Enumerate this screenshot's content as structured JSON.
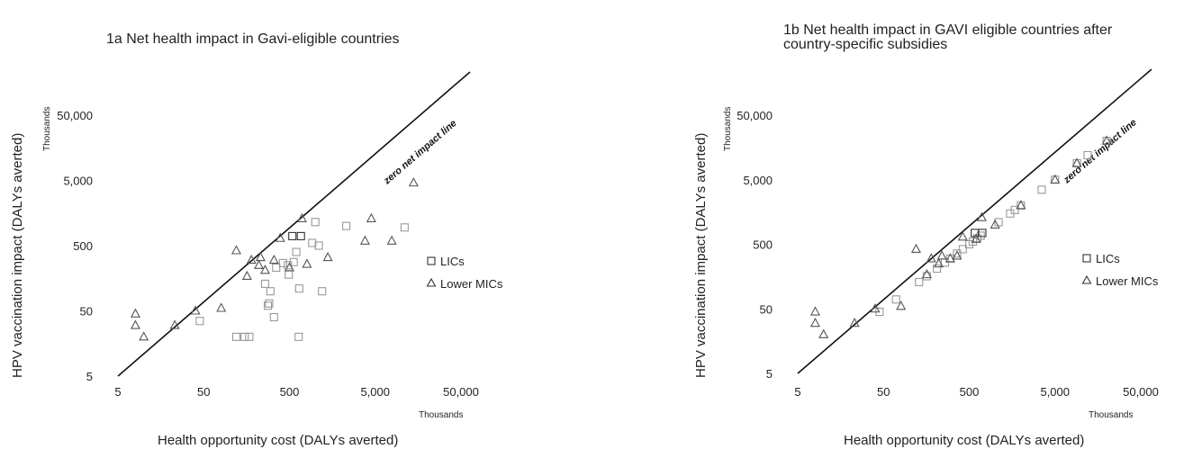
{
  "chart_data": [
    {
      "type": "scatter",
      "title_lines": [
        "1a Net health impact in Gavi-eligible countries"
      ],
      "xlabel": "Health opportunity cost (DALYs averted)",
      "ylabel": "HPV vaccination impact (DALYs averted)",
      "x_units": "Thousands",
      "y_units": "Thousands",
      "x_scale": "log",
      "y_scale": "log",
      "xlim": [
        5,
        100000
      ],
      "ylim": [
        5,
        100000
      ],
      "x_ticks": [
        5,
        50,
        500,
        5000,
        50000
      ],
      "y_ticks": [
        5,
        50,
        500,
        5000,
        50000
      ],
      "x_tick_labels": [
        "5",
        "50",
        "500",
        "5,000",
        "50,000"
      ],
      "y_tick_labels": [
        "5",
        "50",
        "500",
        "5,000",
        "50,000"
      ],
      "reference_line_label": "zero net impact line",
      "legend": [
        "LICs",
        "Lower MICs"
      ],
      "series": [
        {
          "name": "LICs",
          "marker": "square",
          "color": "#999999",
          "points": [
            [
              45,
              35
            ],
            [
              120,
              20
            ],
            [
              150,
              20
            ],
            [
              170,
              20
            ],
            [
              260,
              130
            ],
            [
              290,
              65
            ],
            [
              280,
              60
            ],
            [
              300,
              100
            ],
            [
              330,
              40
            ],
            [
              350,
              230
            ],
            [
              420,
              270
            ],
            [
              480,
              250
            ],
            [
              490,
              180
            ],
            [
              560,
              280
            ],
            [
              600,
              400
            ],
            [
              650,
              110
            ],
            [
              640,
              20
            ],
            [
              920,
              550
            ],
            [
              1000,
              1150
            ],
            [
              1100,
              500
            ],
            [
              1200,
              100
            ],
            [
              2300,
              1000
            ],
            [
              11000,
              950
            ]
          ]
        },
        {
          "name": "LICs",
          "marker": "square",
          "color": "#333333",
          "points": [
            [
              540,
              700
            ],
            [
              680,
              700
            ]
          ]
        },
        {
          "name": "Lower MICs",
          "marker": "triangle",
          "color": "#555555",
          "points": [
            [
              8,
              45
            ],
            [
              8,
              30
            ],
            [
              10,
              20
            ],
            [
              23,
              30
            ],
            [
              40,
              50
            ],
            [
              80,
              55
            ],
            [
              120,
              420
            ],
            [
              160,
              170
            ],
            [
              180,
              300
            ],
            [
              220,
              250
            ],
            [
              230,
              330
            ],
            [
              260,
              210
            ],
            [
              330,
              300
            ],
            [
              390,
              650
            ],
            [
              500,
              230
            ],
            [
              700,
              1300
            ],
            [
              800,
              260
            ],
            [
              1400,
              330
            ],
            [
              3800,
              590
            ],
            [
              4500,
              1300
            ],
            [
              7800,
              590
            ],
            [
              14000,
              4600
            ]
          ]
        }
      ]
    },
    {
      "type": "scatter",
      "title_lines": [
        "1b Net health impact in GAVI eligible countries after",
        "country-specific subsidies"
      ],
      "xlabel": "Health opportunity cost (DALYs averted)",
      "ylabel": "HPV vaccination impact (DALYs averted)",
      "x_units": "Thousands",
      "y_units": "Thousands",
      "x_scale": "log",
      "y_scale": "log",
      "xlim": [
        5,
        100000
      ],
      "ylim": [
        5,
        100000
      ],
      "x_ticks": [
        5,
        50,
        500,
        5000,
        50000
      ],
      "y_ticks": [
        5,
        50,
        500,
        5000,
        50000
      ],
      "x_tick_labels": [
        "5",
        "50",
        "500",
        "5,000",
        "50,000"
      ],
      "y_tick_labels": [
        "5",
        "50",
        "500",
        "5,000",
        "50,000"
      ],
      "reference_line_label": "zero net impact line",
      "legend": [
        "LICs",
        "Lower MICs"
      ],
      "series": [
        {
          "name": "LICs",
          "marker": "square",
          "color": "#999999",
          "points": [
            [
              45,
              45
            ],
            [
              70,
              70
            ],
            [
              130,
              130
            ],
            [
              160,
              160
            ],
            [
              210,
              210
            ],
            [
              260,
              260
            ],
            [
              300,
              300
            ],
            [
              360,
              360
            ],
            [
              420,
              420
            ],
            [
              500,
              500
            ],
            [
              550,
              550
            ],
            [
              620,
              620
            ],
            [
              680,
              680
            ],
            [
              1100,
              1100
            ],
            [
              1500,
              1500
            ],
            [
              1700,
              1700
            ],
            [
              2000,
              2000
            ],
            [
              3500,
              3500
            ],
            [
              5000,
              5000
            ],
            [
              9000,
              9000
            ],
            [
              12000,
              12000
            ],
            [
              20000,
              20000
            ]
          ]
        },
        {
          "name": "LICs",
          "marker": "square",
          "color": "#333333",
          "points": [
            [
              580,
              750
            ],
            [
              710,
              750
            ]
          ]
        },
        {
          "name": "Lower MICs",
          "marker": "triangle",
          "color": "#555555",
          "points": [
            [
              8,
              45
            ],
            [
              8,
              30
            ],
            [
              10,
              20
            ],
            [
              23,
              30
            ],
            [
              40,
              50
            ],
            [
              80,
              55
            ],
            [
              120,
              420
            ],
            [
              160,
              170
            ],
            [
              180,
              300
            ],
            [
              220,
              250
            ],
            [
              240,
              330
            ],
            [
              300,
              300
            ],
            [
              360,
              330
            ],
            [
              420,
              650
            ],
            [
              600,
              600
            ],
            [
              700,
              1300
            ],
            [
              1000,
              1000
            ],
            [
              2000,
              2000
            ],
            [
              5000,
              5000
            ],
            [
              9000,
              9000
            ],
            [
              20000,
              20000
            ]
          ]
        }
      ]
    }
  ]
}
